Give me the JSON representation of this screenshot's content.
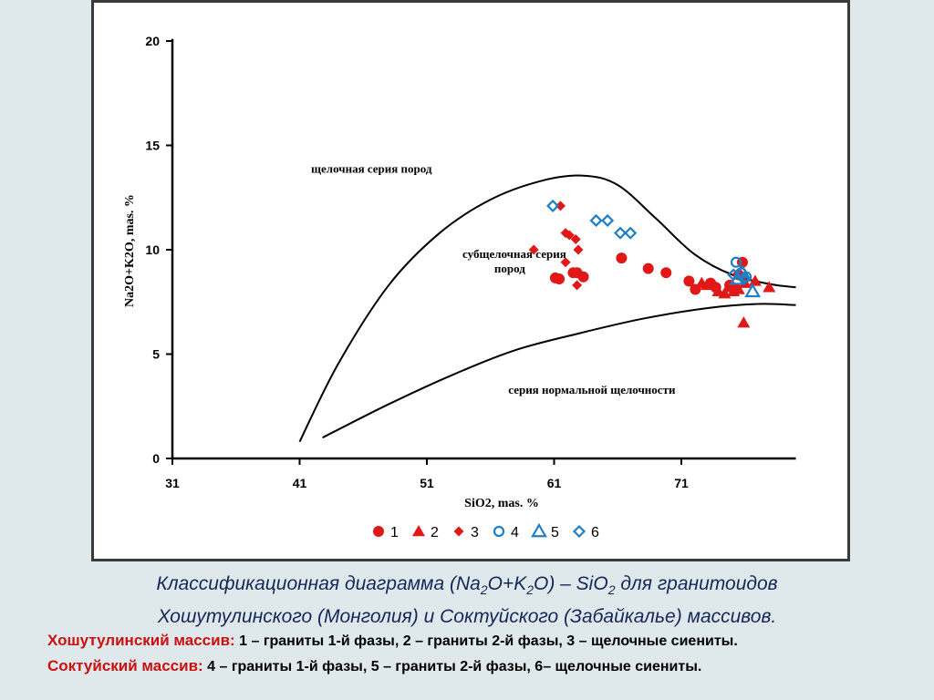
{
  "caption": {
    "line1_part_a": "Классификационная диаграмма (Na",
    "line1_sub1": "2",
    "line1_part_b": "O+K",
    "line1_sub2": "2",
    "line1_part_c": "O) – SiO",
    "line1_sub3": "2",
    "line1_part_d": " для гранитоидов",
    "line2": "Хошутулинского (Монголия) и Соктуйского (Забайкалье) массивов.",
    "massif1_label": "Хошутулинский массив:",
    "massif1_text": " 1 – граниты 1-й фазы, 2 – граниты 2-й фазы, 3 – щелочные сиениты.",
    "massif2_label": "Соктуйский массив:",
    "massif2_text": "  4 – граниты 1-й фазы, 5 – граниты 2-й фазы, 6– щелочные сиениты."
  },
  "colors": {
    "red": "#e01818",
    "blue": "#1f7fc4",
    "curve": "#000000"
  },
  "chart_data": {
    "type": "scatter",
    "xlabel": "SiO2, mas. %",
    "ylabel": "Na2O+K2O, mas. %",
    "xlim": [
      31,
      80
    ],
    "ylim": [
      0,
      20
    ],
    "xticks": [
      31,
      41,
      51,
      61,
      71
    ],
    "yticks": [
      0,
      5,
      10,
      15,
      20
    ],
    "field_labels": [
      {
        "text": "щелочная серия пород",
        "x": 41.9,
        "y": 13.7
      },
      {
        "text": "субщелочная серия",
        "x": 53.8,
        "y": 9.6
      },
      {
        "text": "пород",
        "x": 56.3,
        "y": 8.9
      },
      {
        "text": "серия нормальной щелочности",
        "x": 57.4,
        "y": 3.1
      }
    ],
    "boundary_upper": [
      [
        41.0,
        0.8
      ],
      [
        44,
        4.5
      ],
      [
        48,
        8.3
      ],
      [
        52,
        10.8
      ],
      [
        56,
        12.4
      ],
      [
        60,
        13.3
      ],
      [
        63.3,
        13.55
      ],
      [
        66,
        13.1
      ],
      [
        69,
        11.5
      ],
      [
        72,
        9.8
      ],
      [
        75,
        8.8
      ],
      [
        78,
        8.35
      ],
      [
        80,
        8.2
      ]
    ],
    "boundary_lower": [
      [
        42.8,
        1.0
      ],
      [
        48,
        2.6
      ],
      [
        53,
        4.0
      ],
      [
        58,
        5.2
      ],
      [
        63,
        6.0
      ],
      [
        68,
        6.7
      ],
      [
        73,
        7.2
      ],
      [
        77,
        7.4
      ],
      [
        80,
        7.35
      ]
    ],
    "legend": [
      {
        "id": "1",
        "shape": "circle",
        "color": "red",
        "filled": true
      },
      {
        "id": "2",
        "shape": "triangle",
        "color": "red",
        "filled": true
      },
      {
        "id": "3",
        "shape": "diamond",
        "color": "red",
        "filled": true
      },
      {
        "id": "4",
        "shape": "circle",
        "color": "blue",
        "filled": false
      },
      {
        "id": "5",
        "shape": "triangle",
        "color": "blue",
        "filled": false
      },
      {
        "id": "6",
        "shape": "diamond",
        "color": "blue",
        "filled": false
      }
    ],
    "series": [
      {
        "id": "1",
        "shape": "circle",
        "color": "red",
        "filled": true,
        "points": [
          [
            61.1,
            8.65
          ],
          [
            61.4,
            8.6
          ],
          [
            62.5,
            8.9
          ],
          [
            62.8,
            8.9
          ],
          [
            63.3,
            8.7
          ],
          [
            66.3,
            9.6
          ],
          [
            68.4,
            9.1
          ],
          [
            69.8,
            8.9
          ],
          [
            71.6,
            8.5
          ],
          [
            72.1,
            8.1
          ],
          [
            73.3,
            8.4
          ],
          [
            73.7,
            8.2
          ],
          [
            74.8,
            8.3
          ],
          [
            75.2,
            8.1
          ],
          [
            75.5,
            8.8
          ],
          [
            75.8,
            9.4
          ]
        ]
      },
      {
        "id": "2",
        "shape": "triangle",
        "color": "red",
        "filled": true,
        "points": [
          [
            72.6,
            8.4
          ],
          [
            73.0,
            8.3
          ],
          [
            73.9,
            8.0
          ],
          [
            74.4,
            7.9
          ],
          [
            74.8,
            8.2
          ],
          [
            75.1,
            8.0
          ],
          [
            75.5,
            8.1
          ],
          [
            76.0,
            8.4
          ],
          [
            76.8,
            8.5
          ],
          [
            77.9,
            8.2
          ],
          [
            75.9,
            6.5
          ]
        ]
      },
      {
        "id": "3",
        "shape": "diamond",
        "color": "red",
        "filled": true,
        "points": [
          [
            61.5,
            12.1
          ],
          [
            61.9,
            10.8
          ],
          [
            62.2,
            10.7
          ],
          [
            62.7,
            10.5
          ],
          [
            62.9,
            10.0
          ],
          [
            59.4,
            10.0
          ],
          [
            61.9,
            9.4
          ],
          [
            62.8,
            8.3
          ]
        ]
      },
      {
        "id": "4",
        "shape": "circle",
        "color": "blue",
        "filled": false,
        "points": [
          [
            75.3,
            9.4
          ],
          [
            75.7,
            8.9
          ],
          [
            76.1,
            8.7
          ]
        ]
      },
      {
        "id": "5",
        "shape": "triangle",
        "color": "blue",
        "filled": false,
        "points": [
          [
            75.4,
            8.6
          ],
          [
            75.8,
            8.9
          ],
          [
            76.6,
            8.0
          ]
        ]
      },
      {
        "id": "6",
        "shape": "diamond",
        "color": "blue",
        "filled": false,
        "points": [
          [
            60.9,
            12.1
          ],
          [
            64.3,
            11.4
          ],
          [
            65.2,
            11.4
          ],
          [
            66.2,
            10.8
          ],
          [
            67.0,
            10.8
          ],
          [
            75.1,
            8.8
          ],
          [
            75.9,
            8.6
          ]
        ]
      }
    ]
  }
}
